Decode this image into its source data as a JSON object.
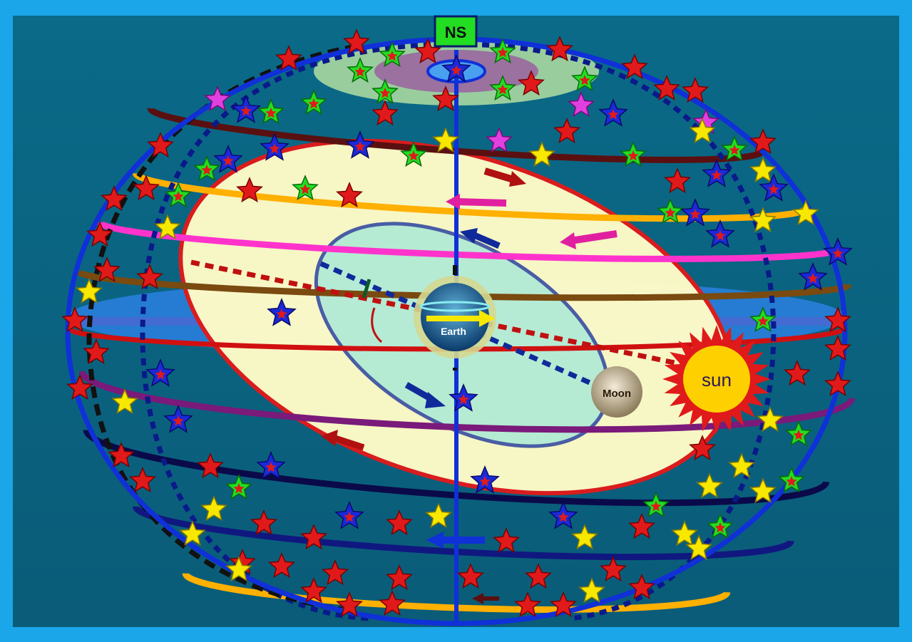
{
  "labels": {
    "north_marker": "NS",
    "earth": "Earth",
    "moon": "Moon",
    "sun": "sun"
  },
  "colors": {
    "frame": "#1aa6e8",
    "panel": "#0b6e8a",
    "sphere_outline": "#1030d8",
    "ecliptic_fill": "#fffbc8",
    "ecliptic_outline": "#e01a1a",
    "moon_orbit_fill": "#9fe8d8",
    "moon_orbit_outline": "#102a9a",
    "north_cap": "#a8d8a0",
    "north_marker_bg": "#22dd22"
  },
  "star_colors": [
    "red",
    "blue",
    "green",
    "yellow",
    "magenta"
  ],
  "latitude_band_colors": [
    "#5a1010",
    "#ffb000",
    "#ff33cc",
    "#7a4a10",
    "#d01010",
    "#7a1a7a",
    "#0a0a4a",
    "#101880",
    "#ffb000"
  ]
}
